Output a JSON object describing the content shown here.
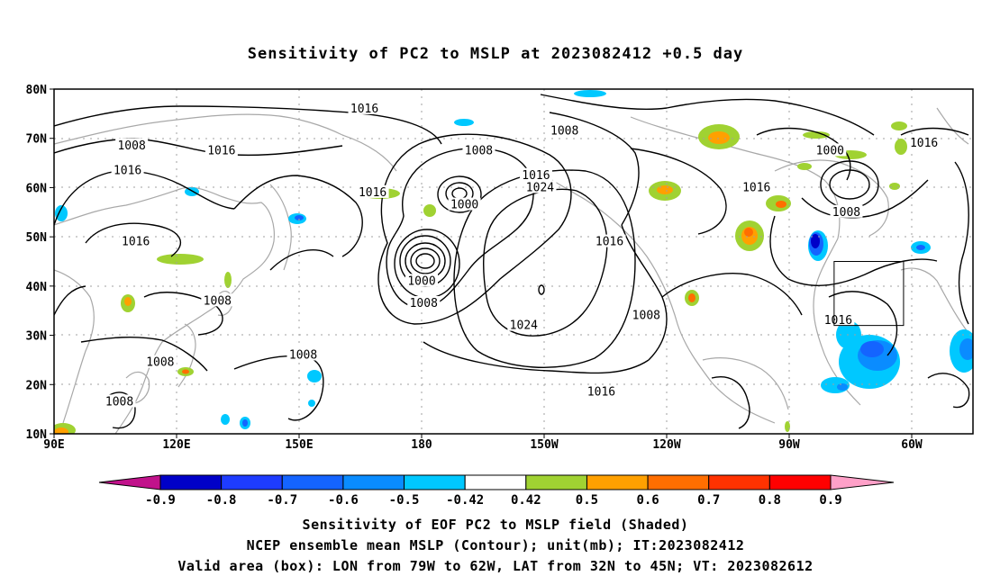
{
  "title": "Sensitivity of PC2 to MSLP at 2023082412 +0.5 day",
  "map": {
    "lat_labels": [
      {
        "lat": 80,
        "text": "80N"
      },
      {
        "lat": 70,
        "text": "70N"
      },
      {
        "lat": 60,
        "text": "60N"
      },
      {
        "lat": 50,
        "text": "50N"
      },
      {
        "lat": 40,
        "text": "40N"
      },
      {
        "lat": 30,
        "text": "30N"
      },
      {
        "lat": 20,
        "text": "20N"
      },
      {
        "lat": 10,
        "text": "10N"
      }
    ],
    "lon_labels": [
      {
        "lon": 90,
        "text": "90E"
      },
      {
        "lon": 120,
        "text": "120E"
      },
      {
        "lon": 150,
        "text": "150E"
      },
      {
        "lon": 180,
        "text": "180"
      },
      {
        "lon": 210,
        "text": "150W"
      },
      {
        "lon": 240,
        "text": "120W"
      },
      {
        "lon": 270,
        "text": "90W"
      },
      {
        "lon": 300,
        "text": "60W"
      }
    ],
    "contour_labels": [
      {
        "text": "1016",
        "lon": 166,
        "lat": 76
      },
      {
        "text": "1008",
        "lon": 109,
        "lat": 68.5
      },
      {
        "text": "1016",
        "lon": 131,
        "lat": 67.5
      },
      {
        "text": "1016",
        "lon": 108,
        "lat": 63.5
      },
      {
        "text": "1016",
        "lon": 168,
        "lat": 59
      },
      {
        "text": "1008",
        "lon": 194,
        "lat": 67.5
      },
      {
        "text": "1008",
        "lon": 215,
        "lat": 71.5
      },
      {
        "text": "1016",
        "lon": 208,
        "lat": 62.5
      },
      {
        "text": "1024",
        "lon": 209,
        "lat": 60
      },
      {
        "text": "1000",
        "lon": 190.5,
        "lat": 56.5
      },
      {
        "text": "1000",
        "lon": 180,
        "lat": 41
      },
      {
        "text": "1008",
        "lon": 180.5,
        "lat": 36.5
      },
      {
        "text": "1024",
        "lon": 205,
        "lat": 32
      },
      {
        "text": "1016",
        "lon": 224,
        "lat": 18.5
      },
      {
        "text": "1016",
        "lon": 226,
        "lat": 49
      },
      {
        "text": "1008",
        "lon": 235,
        "lat": 34
      },
      {
        "text": "1016",
        "lon": 262,
        "lat": 60
      },
      {
        "text": "1000",
        "lon": 280,
        "lat": 67.5
      },
      {
        "text": "1008",
        "lon": 284,
        "lat": 55
      },
      {
        "text": "1016",
        "lon": 303,
        "lat": 69
      },
      {
        "text": "1016",
        "lon": 282,
        "lat": 33
      },
      {
        "text": "1016",
        "lon": 110,
        "lat": 49
      },
      {
        "text": "1008",
        "lon": 130,
        "lat": 37
      },
      {
        "text": "1008",
        "lon": 116,
        "lat": 24.5
      },
      {
        "text": "1008",
        "lon": 151,
        "lat": 26
      },
      {
        "text": "1008",
        "lon": 106,
        "lat": 16.5
      }
    ],
    "valid_box": {
      "lon_min": 281,
      "lon_max": 298,
      "lat_min": 32,
      "lat_max": 45
    }
  },
  "colorbar": {
    "tick_labels": [
      "-0.9",
      "-0.8",
      "-0.7",
      "-0.6",
      "-0.5",
      "-0.42",
      "0.42",
      "0.5",
      "0.6",
      "0.7",
      "0.8",
      "0.9"
    ],
    "colors": [
      "#c1128b",
      "#0000c8",
      "#1e3cff",
      "#1464ff",
      "#0a8cff",
      "#00c8ff",
      "#ffffff",
      "#a0d232",
      "#ffa000",
      "#ff6e00",
      "#ff3200",
      "#ff0000",
      "#ffa0c8"
    ]
  },
  "captions": {
    "line1": "Sensitivity of EOF PC2 to MSLP field (Shaded)",
    "line2": "NCEP ensemble mean MSLP (Contour); unit(mb); IT:2023082412",
    "line3": "Valid area (box): LON from 79W to 62W, LAT from 32N to 45N; VT: 2023082612"
  }
}
